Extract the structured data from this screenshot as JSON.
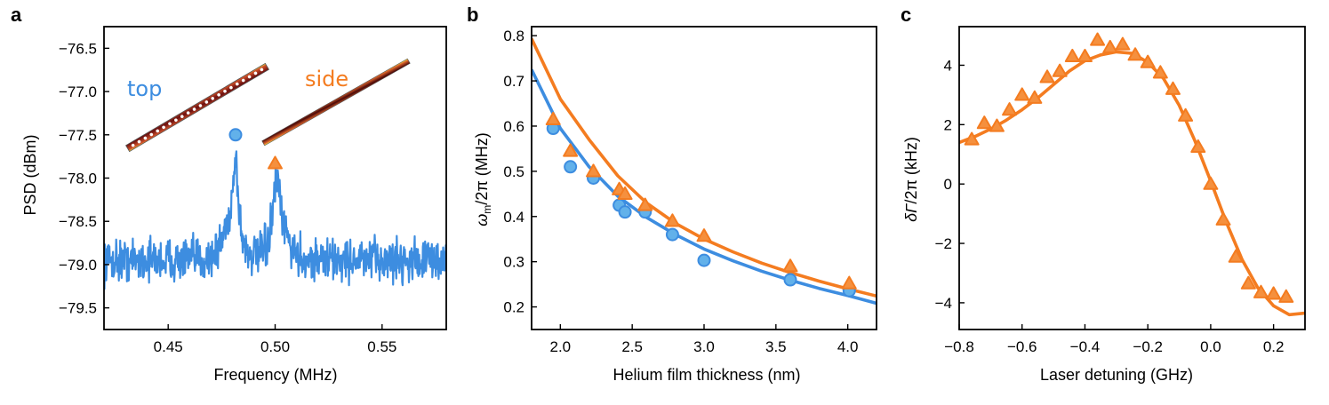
{
  "colors": {
    "blue": "#3d8de0",
    "blue_marker": "#62b1ea",
    "orange": "#f47c20",
    "orange_marker": "#f5903e"
  },
  "chart_data": [
    {
      "panel": "a",
      "type": "line",
      "xlabel": "Frequency (MHz)",
      "ylabel": "PSD (dBm)",
      "xlim": [
        0.42,
        0.58
      ],
      "ylim": [
        -79.75,
        -76.25
      ],
      "xticks": [
        0.45,
        0.5,
        0.55
      ],
      "xtick_labels": [
        "0.45",
        "0.50",
        "0.55"
      ],
      "yticks": [
        -76.5,
        -77.0,
        -77.5,
        -78.0,
        -78.5,
        -79.0,
        -79.5
      ],
      "ytick_labels": [
        "−76.5",
        "−77.0",
        "−77.5",
        "−78.0",
        "−78.5",
        "−79.0",
        "−79.5"
      ],
      "spectrum": {
        "name": "PSD",
        "color": "#3d8de0",
        "baseline": -78.95,
        "noise": 0.17,
        "peaks": [
          {
            "center": 0.4815,
            "height": 0.95,
            "width": 0.0016
          },
          {
            "center": 0.5005,
            "height": 0.72,
            "width": 0.002
          }
        ],
        "shoulders": [
          {
            "center": 0.4785,
            "height": 0.3,
            "width": 0.005
          },
          {
            "center": 0.503,
            "height": 0.25,
            "width": 0.005
          }
        ]
      },
      "markers": [
        {
          "series": "top",
          "shape": "circle",
          "x": 0.4815,
          "y": -77.5
        },
        {
          "series": "side",
          "shape": "triangle",
          "x": 0.5,
          "y": -77.83
        }
      ],
      "annotations": [
        {
          "id": "top",
          "text": "top",
          "color": "#3d8de0"
        },
        {
          "id": "side",
          "text": "side",
          "color": "#f47c20"
        }
      ]
    },
    {
      "panel": "b",
      "type": "scatter",
      "xlabel": "Helium film thickness (nm)",
      "ylabel_main": "ω",
      "ylabel_sub": "m",
      "ylabel_tail": "/2π (MHz)",
      "xlim": [
        1.8,
        4.2
      ],
      "ylim": [
        0.15,
        0.82
      ],
      "xticks": [
        2.0,
        2.5,
        3.0,
        3.5,
        4.0
      ],
      "xtick_labels": [
        "2.0",
        "2.5",
        "3.0",
        "3.5",
        "4.0"
      ],
      "yticks": [
        0.2,
        0.3,
        0.4,
        0.5,
        0.6,
        0.7,
        0.8
      ],
      "ytick_labels": [
        "0.2",
        "0.3",
        "0.4",
        "0.5",
        "0.6",
        "0.7",
        "0.8"
      ],
      "series": [
        {
          "name": "top",
          "shape": "circle",
          "color": "#3d8de0",
          "x": [
            1.95,
            2.07,
            2.23,
            2.41,
            2.45,
            2.59,
            2.78,
            3.0,
            3.6,
            4.01
          ],
          "y": [
            0.595,
            0.51,
            0.485,
            0.425,
            0.41,
            0.41,
            0.36,
            0.303,
            0.26,
            0.236
          ]
        },
        {
          "name": "side",
          "shape": "triangle",
          "color": "#f47c20",
          "x": [
            1.95,
            2.07,
            2.23,
            2.41,
            2.45,
            2.59,
            2.78,
            3.0,
            3.6,
            4.01
          ],
          "y": [
            0.615,
            0.545,
            0.5,
            0.46,
            0.45,
            0.425,
            0.39,
            0.357,
            0.29,
            0.252
          ]
        }
      ],
      "fits": [
        {
          "name": "top fit",
          "color": "#3d8de0",
          "x": [
            1.8,
            2.0,
            2.2,
            2.4,
            2.6,
            2.8,
            3.0,
            3.2,
            3.4,
            3.6,
            3.8,
            4.0,
            4.2
          ],
          "y": [
            0.725,
            0.595,
            0.51,
            0.445,
            0.398,
            0.36,
            0.328,
            0.302,
            0.279,
            0.259,
            0.241,
            0.225,
            0.208
          ]
        },
        {
          "name": "side fit",
          "color": "#f47c20",
          "x": [
            1.8,
            2.0,
            2.2,
            2.4,
            2.6,
            2.8,
            3.0,
            3.2,
            3.4,
            3.6,
            3.8,
            4.0,
            4.2
          ],
          "y": [
            0.793,
            0.66,
            0.57,
            0.49,
            0.43,
            0.385,
            0.35,
            0.322,
            0.297,
            0.276,
            0.257,
            0.24,
            0.224
          ]
        }
      ]
    },
    {
      "panel": "c",
      "type": "scatter",
      "xlabel": "Laser detuning (GHz)",
      "ylabel_main": "δΓ",
      "ylabel_tail": "/2π (kHz)",
      "xlim": [
        -0.8,
        0.3
      ],
      "ylim": [
        -4.9,
        5.3
      ],
      "xticks": [
        -0.8,
        -0.6,
        -0.4,
        -0.2,
        0.0,
        0.2
      ],
      "xtick_labels": [
        "−0.8",
        "−0.6",
        "−0.4",
        "−0.2",
        "0.0",
        "0.2"
      ],
      "yticks": [
        -4,
        -2,
        0,
        2,
        4
      ],
      "ytick_labels": [
        "−4",
        "−2",
        "0",
        "2",
        "4"
      ],
      "series": [
        {
          "name": "side",
          "shape": "triangle",
          "color": "#f47c20",
          "x": [
            -0.76,
            -0.72,
            -0.68,
            -0.64,
            -0.6,
            -0.56,
            -0.52,
            -0.48,
            -0.44,
            -0.4,
            -0.36,
            -0.32,
            -0.28,
            -0.24,
            -0.2,
            -0.16,
            -0.12,
            -0.08,
            -0.04,
            0.0,
            0.04,
            0.08,
            0.12,
            0.16,
            0.2,
            0.24
          ],
          "y": [
            1.5,
            2.05,
            1.95,
            2.5,
            3.0,
            2.9,
            3.6,
            3.8,
            4.3,
            4.3,
            4.85,
            4.6,
            4.7,
            4.35,
            4.1,
            3.75,
            3.2,
            2.3,
            1.25,
            0.0,
            -1.2,
            -2.45,
            -3.35,
            -3.65,
            -3.7,
            -3.8
          ]
        }
      ],
      "fits": [
        {
          "name": "fit",
          "color": "#f47c20",
          "x": [
            -0.8,
            -0.75,
            -0.7,
            -0.65,
            -0.6,
            -0.55,
            -0.5,
            -0.45,
            -0.4,
            -0.35,
            -0.3,
            -0.25,
            -0.2,
            -0.15,
            -0.1,
            -0.05,
            0.0,
            0.05,
            0.1,
            0.15,
            0.2,
            0.25,
            0.3
          ],
          "y": [
            1.4,
            1.6,
            1.85,
            2.15,
            2.5,
            2.9,
            3.35,
            3.8,
            4.15,
            4.35,
            4.45,
            4.4,
            4.1,
            3.55,
            2.65,
            1.45,
            0.1,
            -1.3,
            -2.55,
            -3.5,
            -4.1,
            -4.4,
            -4.35
          ]
        }
      ]
    }
  ],
  "panels": {
    "a": "a",
    "b": "b",
    "c": "c"
  }
}
